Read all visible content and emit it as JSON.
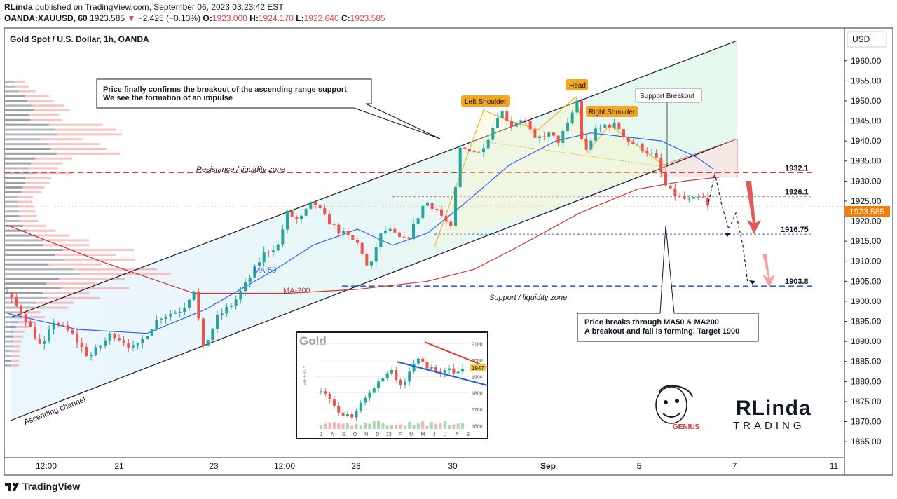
{
  "header": {
    "publisher_line_user": "RLinda",
    "publisher_line_rest": " published on TradingView.com, September 06, 2023 03:23:42 EST",
    "symbol": "OANDA:XAUUSD, 60",
    "last": "1923.585",
    "change": "−2.425 (−0.13%)",
    "o_label": "O:",
    "o": "1923.000",
    "h_label": "H:",
    "h": "1924.170",
    "l_label": "L:",
    "l": "1922.640",
    "c_label": "C:",
    "c": "1923.585"
  },
  "chart_title": "Gold Spot / U.S. Dollar, 1h, OANDA",
  "currency_button": "USD",
  "price_tag": "1923.585",
  "footer_brand": "TradingView",
  "colors": {
    "bull": "#26a69a",
    "bear": "#ef5350",
    "ma50": "#2962ff",
    "ma200": "#d32f2f",
    "accent": "#f57c00"
  },
  "chart_data": {
    "type": "line",
    "title": "Gold Spot / U.S. Dollar, 1h, OANDA",
    "ylim": [
      1861,
      1968
    ],
    "y_ticks": [
      1960,
      1955,
      1950,
      1945,
      1940,
      1935,
      1930,
      1925,
      1920,
      1915,
      1910,
      1905,
      1900,
      1895,
      1890,
      1885,
      1880,
      1875,
      1870,
      1865
    ],
    "x_tick_labels": [
      "12:00",
      "21",
      "23",
      "12:00",
      "28",
      "30",
      "Sep",
      "5",
      "7",
      "11"
    ],
    "price_path": [
      [
        0,
        1902
      ],
      [
        15,
        1896
      ],
      [
        30,
        1888
      ],
      [
        40,
        1895
      ],
      [
        55,
        1892
      ],
      [
        70,
        1886
      ],
      [
        90,
        1892
      ],
      [
        110,
        1888
      ],
      [
        130,
        1896
      ],
      [
        150,
        1898
      ],
      [
        160,
        1903
      ],
      [
        168,
        1888
      ],
      [
        180,
        1896
      ],
      [
        195,
        1900
      ],
      [
        210,
        1907
      ],
      [
        220,
        1912
      ],
      [
        232,
        1914
      ],
      [
        240,
        1922
      ],
      [
        250,
        1920
      ],
      [
        262,
        1925
      ],
      [
        272,
        1921
      ],
      [
        282,
        1918
      ],
      [
        292,
        1916
      ],
      [
        302,
        1914
      ],
      [
        310,
        1907
      ],
      [
        318,
        1916
      ],
      [
        326,
        1918
      ],
      [
        334,
        1916
      ],
      [
        342,
        1915
      ],
      [
        350,
        1920
      ],
      [
        358,
        1925
      ],
      [
        368,
        1923
      ],
      [
        380,
        1918
      ],
      [
        388,
        1938
      ],
      [
        396,
        1938
      ],
      [
        404,
        1937
      ],
      [
        414,
        1942
      ],
      [
        422,
        1948
      ],
      [
        432,
        1944
      ],
      [
        442,
        1946
      ],
      [
        452,
        1940
      ],
      [
        462,
        1942
      ],
      [
        472,
        1940
      ],
      [
        480,
        1944
      ],
      [
        488,
        1950
      ],
      [
        494,
        1936
      ],
      [
        502,
        1942
      ],
      [
        512,
        1944
      ],
      [
        522,
        1944
      ],
      [
        532,
        1940
      ],
      [
        545,
        1938
      ],
      [
        555,
        1936
      ],
      [
        565,
        1928
      ],
      [
        575,
        1926
      ],
      [
        585,
        1925
      ],
      [
        595,
        1926
      ],
      [
        600,
        1923.585
      ]
    ],
    "ma50_path": [
      [
        0,
        1897
      ],
      [
        60,
        1893
      ],
      [
        120,
        1892
      ],
      [
        170,
        1898
      ],
      [
        230,
        1908
      ],
      [
        262,
        1914
      ],
      [
        300,
        1918
      ],
      [
        330,
        1914
      ],
      [
        360,
        1917
      ],
      [
        390,
        1924
      ],
      [
        430,
        1934
      ],
      [
        470,
        1940
      ],
      [
        500,
        1942
      ],
      [
        530,
        1941
      ],
      [
        560,
        1940
      ],
      [
        590,
        1936
      ],
      [
        605,
        1933
      ]
    ],
    "ma200_path": [
      [
        0,
        1919
      ],
      [
        80,
        1910
      ],
      [
        160,
        1902
      ],
      [
        240,
        1902
      ],
      [
        300,
        1903
      ],
      [
        360,
        1905
      ],
      [
        400,
        1908
      ],
      [
        440,
        1914
      ],
      [
        490,
        1922
      ],
      [
        540,
        1928
      ],
      [
        580,
        1930
      ],
      [
        610,
        1931
      ]
    ],
    "levels": [
      {
        "value": 1932.1,
        "label": "1932.1"
      },
      {
        "value": 1926.1,
        "label": "1926.1"
      },
      {
        "value": 1916.75,
        "label": "1916.75"
      },
      {
        "value": 1903.8,
        "label": "1903.8"
      }
    ],
    "forecast_path": [
      [
        600,
        1923.585
      ],
      [
        606,
        1932
      ],
      [
        612,
        1924
      ],
      [
        618,
        1918
      ],
      [
        624,
        1922
      ],
      [
        630,
        1914
      ],
      [
        634,
        1905
      ]
    ],
    "annotations": {
      "callout1_line1": "Price finally confirms the breakout of the ascending range support",
      "callout1_line2": "We see the formation of an impulse",
      "left_shoulder": "Left Shoulder",
      "head": "Head",
      "right_shoulder": "Right Shoulder",
      "support_breakout": "Support Breakout",
      "resistance_zone": "Resistance / liquidity zone",
      "support_zone": "Support / liquidity zone",
      "ma50": "MA-50",
      "ma200": "MA-200",
      "channel": "Ascending channel",
      "callout2_line1": "Price breaks through MA50 & MA200",
      "callout2_line2": "A breakout and fall is forming. Target 1900"
    },
    "inset": {
      "title": "Gold",
      "side_label": "WEEKLY",
      "ylim": [
        1580,
        2120
      ],
      "y_ticks": [
        2100,
        2000,
        1900,
        1800,
        1700,
        1600
      ],
      "x_labels": [
        "J",
        "A",
        "S",
        "O",
        "N",
        "D",
        "23",
        "F",
        "M",
        "M",
        "J",
        "J",
        "A",
        "S"
      ],
      "last_label": "1947",
      "weekly_closes": [
        1810,
        1795,
        1760,
        1720,
        1680,
        1660,
        1670,
        1650,
        1690,
        1740,
        1770,
        1800,
        1830,
        1870,
        1890,
        1920,
        1940,
        1880,
        1850,
        1870,
        1930,
        1980,
        2010,
        1990,
        1950,
        1960,
        1930,
        1920,
        1940,
        1950,
        1920,
        1930,
        1947
      ]
    },
    "logo_texts": {
      "genius": "GENIUS",
      "brand1": "RLinda",
      "brand2": "TRADING"
    }
  }
}
